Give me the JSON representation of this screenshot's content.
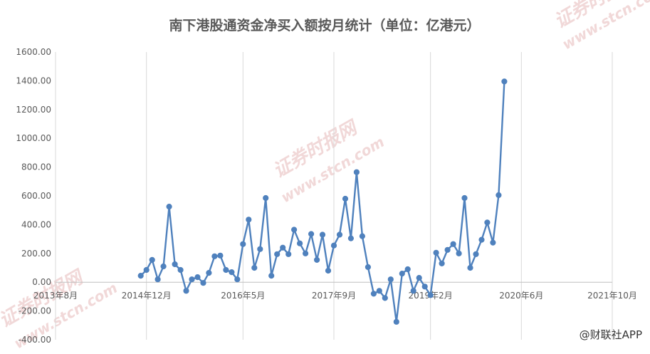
{
  "chart_data": {
    "type": "line",
    "title": "南下港股通资金净买入额按月统计（单位：亿港元）",
    "xlabel": "",
    "ylabel": "",
    "ylim": [
      -400,
      1600
    ],
    "y_ticks": [
      "1600.00",
      "1400.00",
      "1200.00",
      "1000.00",
      "800.00",
      "600.00",
      "400.00",
      "200.00",
      "0.00",
      "-200.00",
      "-400.00"
    ],
    "x_ticks": [
      "2013年8月",
      "2014年12月",
      "2016年5月",
      "2017年9月",
      "2019年2月",
      "2020年6月",
      "2021年10月"
    ],
    "x_tick_months": [
      0,
      16,
      33,
      49,
      66,
      82,
      98
    ],
    "grid": "vertical",
    "color": "#4f81bd",
    "series": [
      {
        "x_start": "2014年11月",
        "values": [
          45,
          85,
          155,
          20,
          110,
          525,
          125,
          85,
          -60,
          20,
          35,
          -5,
          65,
          180,
          185,
          85,
          70,
          20,
          265,
          435,
          100,
          230,
          585,
          45,
          195,
          240,
          195,
          365,
          270,
          200,
          335,
          155,
          330,
          80,
          255,
          330,
          580,
          305,
          765,
          320,
          105,
          -80,
          -60,
          -110,
          20,
          -275,
          60,
          90,
          -60,
          30,
          -30,
          -90,
          205,
          130,
          225,
          265,
          200,
          585,
          100,
          195,
          295,
          415,
          275,
          605,
          1395
        ]
      }
    ]
  },
  "watermarks": [
    "证券时报网",
    "www.stcn.com"
  ],
  "credit": "@财联社APP"
}
